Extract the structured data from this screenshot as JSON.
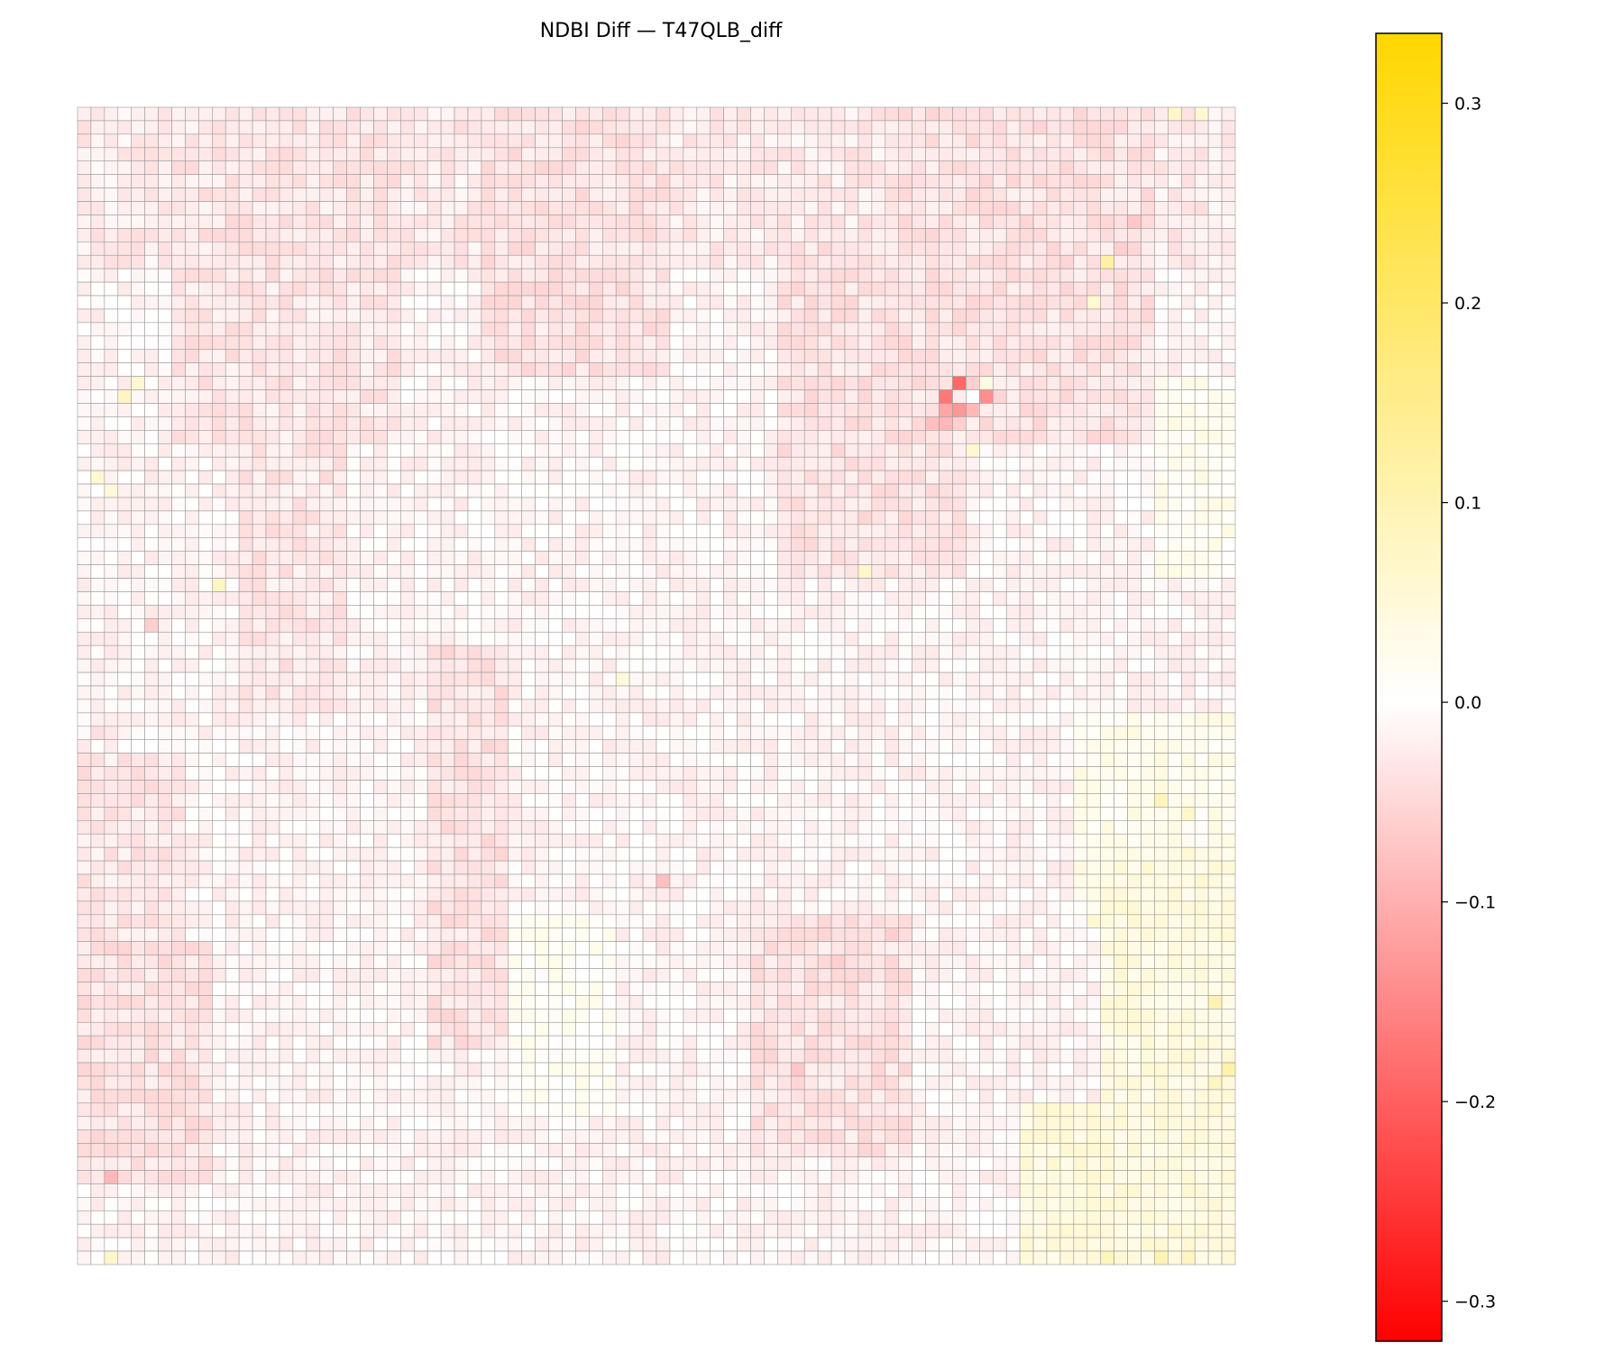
{
  "chart_data": {
    "type": "heatmap",
    "title": "NDBI Diff — T47QLB_diff",
    "xlabel": "",
    "ylabel": "",
    "grid": {
      "rows": 86,
      "cols": 86,
      "gridlines": true,
      "gridline_color": "#999999"
    },
    "axes_visible": false,
    "colormap": {
      "stops": [
        {
          "value": -0.32,
          "color": "#ff0000"
        },
        {
          "value": 0.0,
          "color": "#ffffff"
        },
        {
          "value": 0.335,
          "color": "#ffd700"
        }
      ]
    },
    "colorbar": {
      "range": [
        -0.32,
        0.335
      ],
      "position": "right",
      "ticks": [
        {
          "value": 0.3,
          "label": "0.3"
        },
        {
          "value": 0.2,
          "label": "0.2"
        },
        {
          "value": 0.1,
          "label": "0.1"
        },
        {
          "value": 0.0,
          "label": "0.0"
        },
        {
          "value": -0.1,
          "label": "−0.1"
        },
        {
          "value": -0.2,
          "label": "−0.2"
        },
        {
          "value": -0.3,
          "label": "−0.3"
        }
      ]
    },
    "background_value": -0.012,
    "patterns": [
      {
        "rows": [
          0,
          12
        ],
        "cols": [
          0,
          86
        ],
        "value": -0.025
      },
      {
        "rows": [
          0,
          25
        ],
        "cols": [
          7,
          24
        ],
        "value": -0.03
      },
      {
        "rows": [
          0,
          20
        ],
        "cols": [
          30,
          44
        ],
        "value": -0.035
      },
      {
        "rows": [
          0,
          25
        ],
        "cols": [
          60,
          80
        ],
        "value": -0.035
      },
      {
        "rows": [
          10,
          35
        ],
        "cols": [
          52,
          66
        ],
        "value": -0.035
      },
      {
        "rows": [
          25,
          45
        ],
        "cols": [
          12,
          20
        ],
        "value": -0.03
      },
      {
        "rows": [
          40,
          70
        ],
        "cols": [
          26,
          32
        ],
        "value": -0.035
      },
      {
        "rows": [
          48,
          70
        ],
        "cols": [
          0,
          8
        ],
        "value": -0.03
      },
      {
        "rows": [
          62,
          80
        ],
        "cols": [
          0,
          10
        ],
        "value": -0.035
      },
      {
        "rows": [
          60,
          78
        ],
        "cols": [
          50,
          62
        ],
        "value": -0.035
      },
      {
        "rows": [
          20,
          35
        ],
        "cols": [
          80,
          86
        ],
        "value": 0.02
      },
      {
        "rows": [
          45,
          60
        ],
        "cols": [
          74,
          86
        ],
        "value": 0.025
      },
      {
        "rows": [
          55,
          86
        ],
        "cols": [
          76,
          86
        ],
        "value": 0.04
      },
      {
        "rows": [
          60,
          75
        ],
        "cols": [
          32,
          40
        ],
        "value": 0.012
      },
      {
        "rows": [
          74,
          86
        ],
        "cols": [
          70,
          86
        ],
        "value": 0.045
      }
    ],
    "cells": [
      {
        "row": 20,
        "col": 65,
        "value": -0.19
      },
      {
        "row": 21,
        "col": 64,
        "value": -0.17
      },
      {
        "row": 21,
        "col": 66,
        "value": 0.0
      },
      {
        "row": 21,
        "col": 67,
        "value": -0.14
      },
      {
        "row": 20,
        "col": 66,
        "value": -0.06
      },
      {
        "row": 20,
        "col": 67,
        "value": 0.04
      },
      {
        "row": 22,
        "col": 64,
        "value": -0.11
      },
      {
        "row": 22,
        "col": 65,
        "value": -0.13
      },
      {
        "row": 22,
        "col": 66,
        "value": -0.09
      },
      {
        "row": 23,
        "col": 63,
        "value": -0.08
      },
      {
        "row": 23,
        "col": 64,
        "value": -0.09
      },
      {
        "row": 23,
        "col": 65,
        "value": -0.06
      },
      {
        "row": 25,
        "col": 66,
        "value": 0.06
      },
      {
        "row": 21,
        "col": 3,
        "value": 0.08
      },
      {
        "row": 20,
        "col": 4,
        "value": 0.06
      },
      {
        "row": 28,
        "col": 2,
        "value": 0.05
      },
      {
        "row": 27,
        "col": 1,
        "value": 0.06
      },
      {
        "row": 11,
        "col": 76,
        "value": 0.12
      },
      {
        "row": 14,
        "col": 75,
        "value": 0.06
      },
      {
        "row": 8,
        "col": 78,
        "value": -0.07
      },
      {
        "row": 10,
        "col": 77,
        "value": -0.06
      },
      {
        "row": 35,
        "col": 10,
        "value": 0.08
      },
      {
        "row": 34,
        "col": 58,
        "value": 0.07
      },
      {
        "row": 42,
        "col": 40,
        "value": 0.05
      },
      {
        "row": 51,
        "col": 80,
        "value": 0.09
      },
      {
        "row": 52,
        "col": 82,
        "value": 0.07
      },
      {
        "row": 60,
        "col": 75,
        "value": 0.06
      },
      {
        "row": 66,
        "col": 84,
        "value": 0.1
      },
      {
        "row": 71,
        "col": 85,
        "value": 0.11
      },
      {
        "row": 72,
        "col": 84,
        "value": 0.08
      },
      {
        "row": 79,
        "col": 2,
        "value": -0.09
      },
      {
        "row": 85,
        "col": 2,
        "value": 0.07
      },
      {
        "row": 85,
        "col": 80,
        "value": 0.1
      },
      {
        "row": 85,
        "col": 82,
        "value": 0.08
      },
      {
        "row": 85,
        "col": 76,
        "value": 0.09
      },
      {
        "row": 0,
        "col": 81,
        "value": 0.07
      },
      {
        "row": 0,
        "col": 83,
        "value": 0.06
      },
      {
        "row": 57,
        "col": 43,
        "value": -0.08
      },
      {
        "row": 61,
        "col": 60,
        "value": -0.06
      },
      {
        "row": 63,
        "col": 56,
        "value": -0.06
      },
      {
        "row": 71,
        "col": 53,
        "value": -0.07
      },
      {
        "row": 38,
        "col": 5,
        "value": -0.06
      },
      {
        "row": 46,
        "col": 1,
        "value": -0.04
      }
    ]
  }
}
